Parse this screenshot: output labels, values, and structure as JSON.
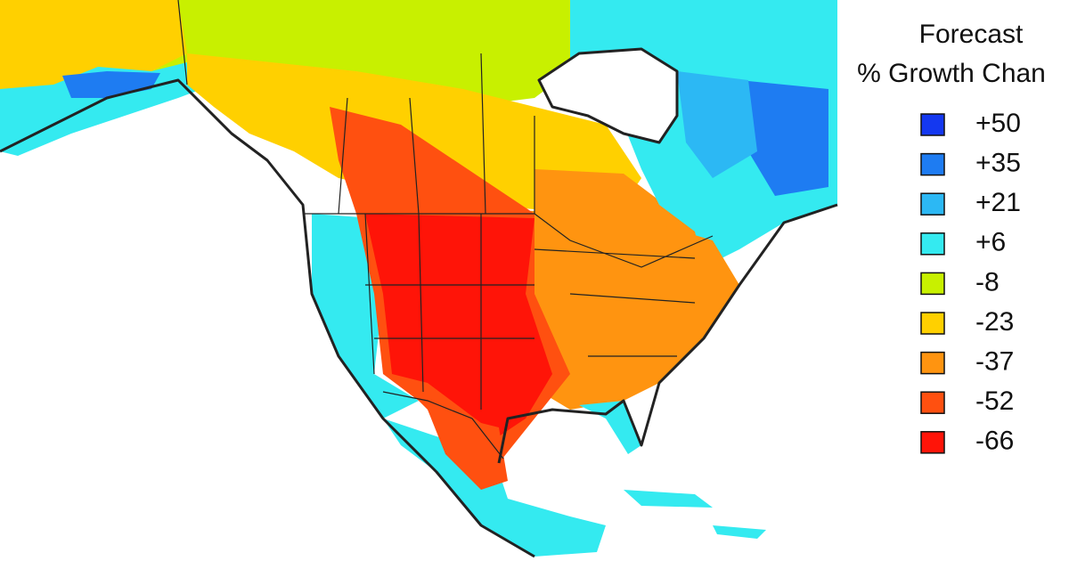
{
  "legend": {
    "title": [
      "Forecast",
      "% Growth Chan"
    ],
    "items": [
      {
        "label": "+50",
        "color": "#1438f0"
      },
      {
        "label": "+35",
        "color": "#1e7cf2"
      },
      {
        "label": "+21",
        "color": "#2cb8f4"
      },
      {
        "label": "+6",
        "color": "#34eaf0"
      },
      {
        "label": "-8",
        "color": "#c8f000"
      },
      {
        "label": "-23",
        "color": "#ffd000"
      },
      {
        "label": "-37",
        "color": "#ff9410"
      },
      {
        "label": "-52",
        "color": "#ff5010"
      },
      {
        "label": "-66",
        "color": "#ff1408"
      }
    ]
  }
}
